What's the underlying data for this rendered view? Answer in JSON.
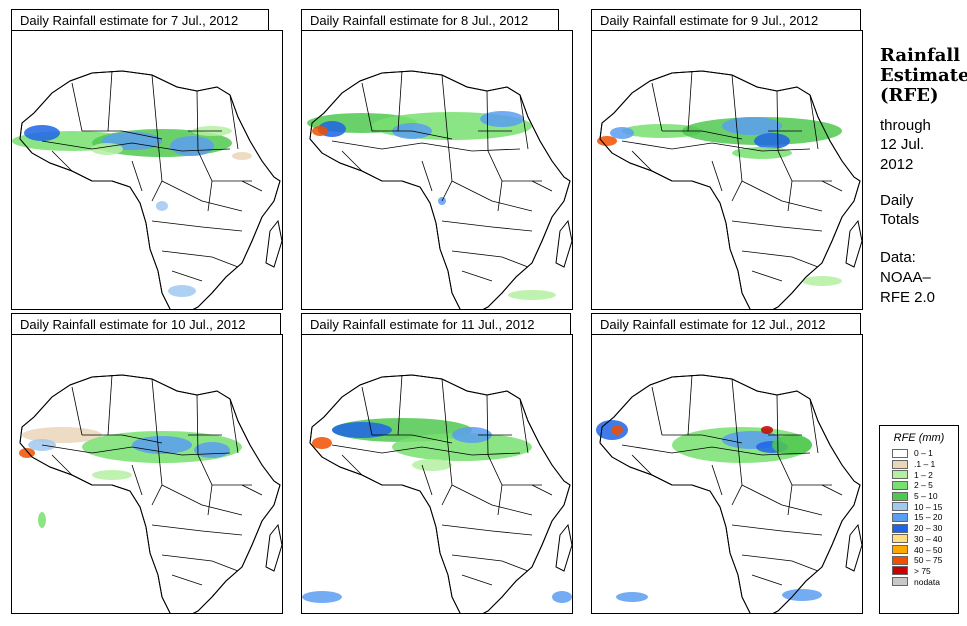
{
  "panels": [
    {
      "title": "Daily Rainfall estimate for  7 Jul., 2012"
    },
    {
      "title": "Daily Rainfall estimate for  8 Jul., 2012"
    },
    {
      "title": "Daily Rainfall estimate for  9 Jul., 2012"
    },
    {
      "title": "Daily Rainfall estimate for  10 Jul., 2012"
    },
    {
      "title": "Daily Rainfall estimate for  11 Jul., 2012"
    },
    {
      "title": "Daily Rainfall estimate for  12 Jul., 2012"
    }
  ],
  "side": {
    "title_line1": "Rainfall",
    "title_line2": "Estimate",
    "title_line3": "(RFE)",
    "through": "through",
    "date1": "12 Jul.",
    "date2": "2012",
    "daily": "Daily",
    "totals": "Totals",
    "data_label": "Data:",
    "source1": "NOAA–",
    "source2": "RFE 2.0"
  },
  "legend": {
    "title": "RFE (mm)",
    "items": [
      {
        "label": "0 – 1",
        "color": "#ffffff"
      },
      {
        "label": ".1 – 1",
        "color": "#ead6b8"
      },
      {
        "label": "1 – 2",
        "color": "#b4f0a0"
      },
      {
        "label": "2 – 5",
        "color": "#78e070"
      },
      {
        "label": "5 – 10",
        "color": "#50c850"
      },
      {
        "label": "10 – 15",
        "color": "#a0c8f0"
      },
      {
        "label": "15 – 20",
        "color": "#5a9ef0"
      },
      {
        "label": "20 – 30",
        "color": "#1e64e6"
      },
      {
        "label": "30 – 40",
        "color": "#ffe080"
      },
      {
        "label": "40 – 50",
        "color": "#ffa800"
      },
      {
        "label": "50 – 75",
        "color": "#f05000"
      },
      {
        "label": "> 75",
        "color": "#c80000"
      },
      {
        "label": "nodata",
        "color": "#c8c8c8"
      }
    ]
  }
}
